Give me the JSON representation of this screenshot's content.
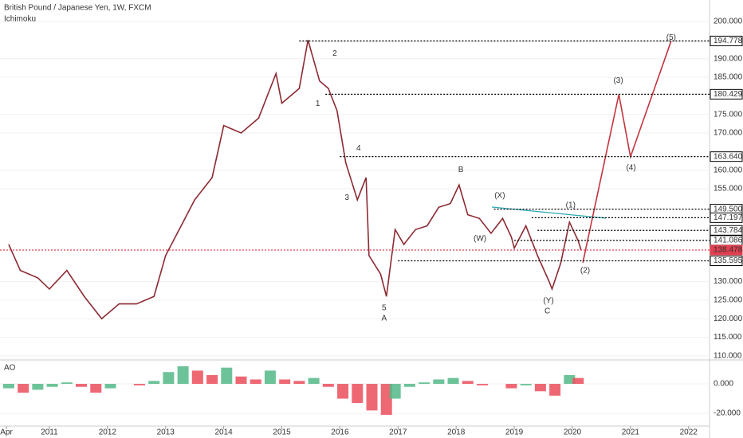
{
  "chart_data": [
    {
      "type": "line",
      "title": "British Pound / Japanese Yen, 1W, FXCM",
      "subtitle": "Ichimoku",
      "xlim": [
        2010.15,
        2022.36
      ],
      "ylim": [
        108.9,
        205.8
      ],
      "yticks": [
        {
          "value": 110,
          "label": "110.000"
        },
        {
          "value": 115,
          "label": "115.000"
        },
        {
          "value": 120,
          "label": "120.000"
        },
        {
          "value": 125,
          "label": "125.000"
        },
        {
          "value": 130,
          "label": "130.000"
        },
        {
          "value": 155,
          "label": "155.000"
        },
        {
          "value": 160,
          "label": "160.000"
        },
        {
          "value": 170,
          "label": "170.000"
        },
        {
          "value": 175,
          "label": "175.000"
        },
        {
          "value": 185,
          "label": "185.000"
        },
        {
          "value": 190,
          "label": "190.000"
        },
        {
          "value": 200,
          "label": "200.000"
        }
      ],
      "series": [
        {
          "color": "#8c2a33",
          "x": [
            2010.3,
            2010.5,
            2010.8,
            2011.0,
            2011.3,
            2011.6,
            2011.9,
            2012.2,
            2012.5,
            2012.8,
            2013.0,
            2013.3,
            2013.5,
            2013.8,
            2014.0,
            2014.3,
            2014.6,
            2014.9,
            2015.0,
            2015.3,
            2015.45,
            2015.65,
            2015.8,
            2015.95,
            2016.1,
            2016.3,
            2016.45,
            2016.5,
            2016.7,
            2016.8,
            2016.95,
            2017.1,
            2017.3,
            2017.5,
            2017.7,
            2017.9,
            2018.05,
            2018.2,
            2018.4,
            2018.6,
            2018.8,
            2018.95,
            2019.0,
            2019.2,
            2019.4,
            2019.6,
            2019.65,
            2019.8,
            2019.95,
            2020.1,
            2020.15
          ],
          "values": [
            140,
            133,
            131,
            128,
            133,
            126,
            120,
            124,
            124,
            126,
            137,
            146,
            152,
            158,
            172,
            170,
            174,
            186,
            178,
            182,
            195,
            184,
            182,
            176,
            162,
            152,
            158,
            137,
            132,
            126,
            144,
            140,
            144,
            145,
            150,
            151,
            156,
            148,
            147,
            143,
            147,
            142,
            139,
            145,
            137,
            130,
            128,
            135,
            146,
            141,
            138.5
          ]
        },
        {
          "color": "#c2353f",
          "x": [
            2020.18,
            2020.8,
            2021.0,
            2021.7
          ],
          "values": [
            135.1,
            180.4,
            163.6,
            194.8
          ]
        }
      ],
      "levels": [
        {
          "value": 194.778,
          "from": 2015.3
        },
        {
          "value": 180.429,
          "from": 2015.75
        },
        {
          "value": 163.64,
          "label": "163.640",
          "from": 2016.0
        },
        {
          "value": 149.5,
          "label": "149.500",
          "from": 2018.65
        },
        {
          "value": 147.197,
          "from": 2019.3
        },
        {
          "value": 143.784,
          "from": 2019.4
        },
        {
          "value": 141.086,
          "from": 2019.0
        },
        {
          "value": 138.478,
          "from": 2010.15,
          "color": "#e04050"
        },
        {
          "value": 135.595,
          "from": 2017.0
        }
      ],
      "annotations": [
        {
          "text": "1",
          "x": 2015.62,
          "y": 177.9,
          "color": "#1f8a96"
        },
        {
          "text": "2",
          "x": 2015.91,
          "y": 191.4,
          "color": "#1f8a96"
        },
        {
          "text": "3",
          "x": 2016.12,
          "y": 152.6,
          "color": "#1f8a96"
        },
        {
          "text": "4",
          "x": 2016.32,
          "y": 165.9,
          "color": "#1f8a96"
        },
        {
          "text": "5",
          "x": 2016.76,
          "y": 122.9,
          "color": "#1f8a96"
        },
        {
          "text": "A",
          "x": 2016.76,
          "y": 120.1,
          "color": "#b22833"
        },
        {
          "text": "B",
          "x": 2018.08,
          "y": 160.1,
          "color": "#b22833"
        },
        {
          "text": "C",
          "x": 2019.57,
          "y": 122.0,
          "color": "#b22833"
        },
        {
          "text": "(W)",
          "x": 2018.41,
          "y": 141.5,
          "color": "#333333"
        },
        {
          "text": "(X)",
          "x": 2018.75,
          "y": 153.1,
          "color": "#333333"
        },
        {
          "text": "(Y)",
          "x": 2019.59,
          "y": 124.8,
          "color": "#333333"
        },
        {
          "text": "(1)",
          "x": 2019.97,
          "y": 150.5,
          "color": "#333333"
        },
        {
          "text": "(2)",
          "x": 2020.22,
          "y": 132.9,
          "color": "#333333"
        },
        {
          "text": "(3)",
          "x": 2020.79,
          "y": 184.1,
          "color": "#333333"
        },
        {
          "text": "(4)",
          "x": 2021.01,
          "y": 160.6,
          "color": "#333333"
        },
        {
          "text": "(5)",
          "x": 2021.7,
          "y": 195.7,
          "color": "#333333"
        }
      ]
    },
    {
      "type": "bar",
      "title": "AO",
      "xlim": [
        2010.15,
        2022.36
      ],
      "ylim": [
        -28.6,
        14.6
      ],
      "yticks": [
        {
          "value": 0,
          "label": "0.000"
        },
        {
          "value": -20,
          "label": "-20.000"
        }
      ],
      "xticks": [
        {
          "value": 2010.26,
          "label": "Apr"
        },
        2011,
        2012,
        2013,
        2014,
        2015,
        2016,
        2017,
        2018,
        2019,
        2020,
        2021,
        2022
      ],
      "up_color": "#53b987",
      "down_color": "#eb4d5c",
      "x": [
        2010.3,
        2010.55,
        2010.8,
        2011.05,
        2011.3,
        2011.55,
        2011.8,
        2012.05,
        2012.3,
        2012.55,
        2012.8,
        2013.05,
        2013.3,
        2013.55,
        2013.8,
        2014.05,
        2014.3,
        2014.55,
        2014.8,
        2015.05,
        2015.3,
        2015.55,
        2015.8,
        2016.05,
        2016.3,
        2016.55,
        2016.8,
        2016.95,
        2017.2,
        2017.45,
        2017.7,
        2017.95,
        2018.2,
        2018.45,
        2018.7,
        2018.95,
        2019.2,
        2019.45,
        2019.7,
        2019.95,
        2020.1
      ],
      "values": [
        -3,
        -6,
        -4,
        -2,
        1,
        -2,
        -6,
        -3,
        0,
        -1,
        2,
        8,
        12,
        9,
        6,
        11,
        5,
        3,
        9,
        3,
        2,
        4,
        -2,
        -10,
        -13,
        -18,
        -21,
        -10,
        -2,
        1,
        3,
        4,
        2,
        -1,
        0,
        -3,
        -1,
        -5,
        -8,
        6,
        4
      ]
    }
  ]
}
